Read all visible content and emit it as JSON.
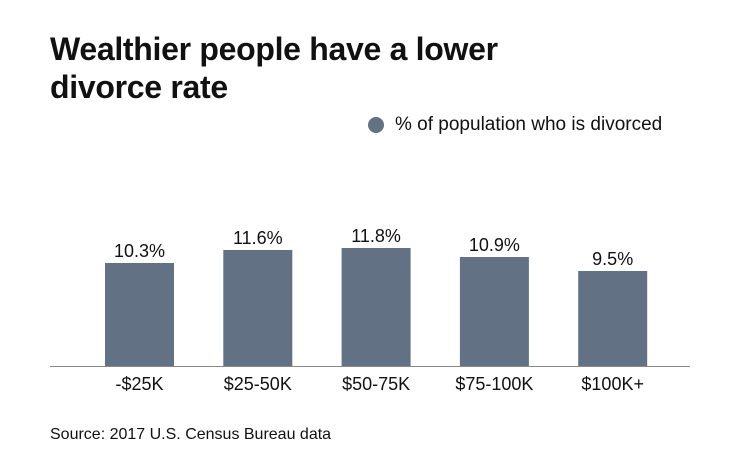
{
  "chart_data": {
    "type": "bar",
    "title": "Wealthier people have a lower divorce rate",
    "categories": [
      "-$25K",
      "$25-50K",
      "$50-75K",
      "$75-100K",
      "$100K+"
    ],
    "series": [
      {
        "name": "% of population who is divorced",
        "values": [
          10.3,
          11.6,
          11.8,
          10.9,
          9.5
        ],
        "labels": [
          "10.3%",
          "11.6%",
          "11.8%",
          "10.9%",
          "9.5%"
        ],
        "color": "#627184"
      }
    ],
    "ylim": [
      0,
      18
    ],
    "grid": false,
    "legend": "top-right",
    "source": "Source: 2017 U.S. Census Bureau data"
  }
}
